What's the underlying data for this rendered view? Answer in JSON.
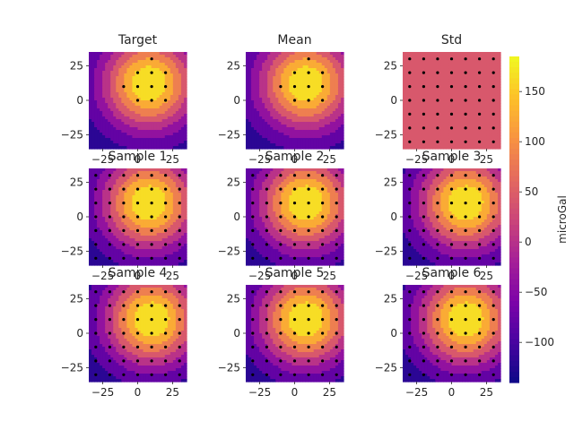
{
  "chart_data": {
    "type": "heatmap",
    "description_units": "microGal",
    "x_ticks": [
      -25,
      0,
      25
    ],
    "y_ticks": [
      25,
      0,
      -25
    ],
    "xlim": [
      -35,
      35
    ],
    "ylim": [
      -35,
      35
    ],
    "grid": false,
    "colormap": "plasma",
    "colorbar": {
      "label": "microGal",
      "range": [
        -140,
        185
      ],
      "ticks": [
        -100,
        -50,
        0,
        50,
        100,
        150
      ]
    },
    "sensor_grid_spacing": 10,
    "panels": [
      {
        "title": "Target",
        "field": {
          "peak": 185,
          "base": -140,
          "cx": 8,
          "cy": 12,
          "sigma": 24
        },
        "points": "bright-region-only"
      },
      {
        "title": "Mean",
        "field": {
          "peak": 185,
          "base": -140,
          "cx": 8,
          "cy": 12,
          "sigma": 24
        },
        "points": "bright-region-only"
      },
      {
        "title": "Std",
        "field": {
          "constant": 30
        },
        "points": "all"
      },
      {
        "title": "Sample 1",
        "field": {
          "peak": 185,
          "base": -140,
          "cx": 8,
          "cy": 10,
          "sigma": 24
        },
        "points": "all"
      },
      {
        "title": "Sample 2",
        "field": {
          "peak": 185,
          "base": -140,
          "cx": 8,
          "cy": 10,
          "sigma": 24
        },
        "points": "all"
      },
      {
        "title": "Sample 3",
        "field": {
          "peak": 185,
          "base": -140,
          "cx": 10,
          "cy": 10,
          "sigma": 24
        },
        "points": "all"
      },
      {
        "title": "Sample 4",
        "field": {
          "peak": 185,
          "base": -140,
          "cx": 10,
          "cy": 10,
          "sigma": 24
        },
        "points": "all"
      },
      {
        "title": "Sample 5",
        "field": {
          "peak": 185,
          "base": -140,
          "cx": 8,
          "cy": 10,
          "sigma": 24
        },
        "points": "all"
      },
      {
        "title": "Sample 6",
        "field": {
          "peak": 185,
          "base": -140,
          "cx": 10,
          "cy": 10,
          "sigma": 24
        },
        "points": "all"
      }
    ]
  }
}
